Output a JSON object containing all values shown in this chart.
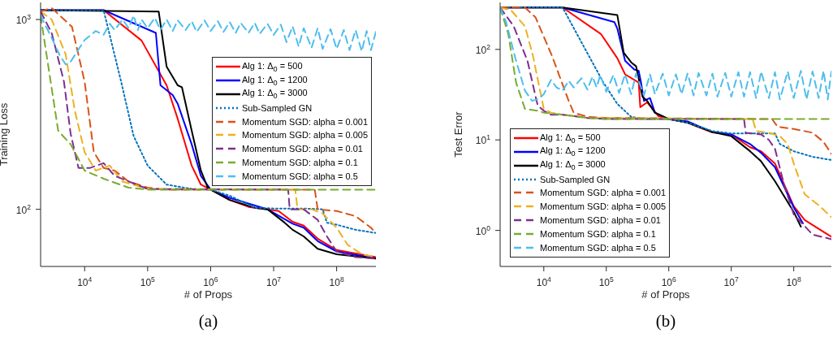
{
  "chart_data": [
    {
      "type": "line",
      "xlabel": "# of Props",
      "ylabel": "Training Loss",
      "log": "xy",
      "legend": "right",
      "annotations": [
        "(a)"
      ],
      "xlim": [
        2000,
        420000000
      ],
      "ylim": [
        50,
        1230
      ],
      "xticks": [
        {
          "value": 10000,
          "label": "10$^{4}$"
        },
        {
          "value": 100000,
          "label": "10$^{5}$"
        },
        {
          "value": 1000000,
          "label": "10$^{6}$"
        },
        {
          "value": 10000000,
          "label": "10$^{7}$"
        },
        {
          "value": 100000000,
          "label": "10$^{8}$"
        }
      ],
      "yticks": [
        {
          "value": 100,
          "label": "10$^{2}$"
        },
        {
          "value": 1000,
          "label": "10$^{3}$"
        }
      ],
      "series": [
        {
          "name": "Alg 1: Δ$_{0}$ = 500",
          "color": "#ff0000",
          "line_style": "solid",
          "x": [
            2000,
            20000,
            80000,
            200000,
            300000,
            500000,
            700000,
            1000000,
            2000000,
            4000000,
            8000000,
            12000000,
            20000000,
            30000000,
            50000000,
            100000000,
            420000000
          ],
          "values": [
            1120,
            1120,
            775,
            450,
            300,
            170,
            135,
            127,
            112,
            103,
            100,
            98,
            86,
            82,
            70,
            61,
            56
          ]
        },
        {
          "name": "Alg 1: Δ$_{0}$ = 1200",
          "color": "#0000ff",
          "line_style": "solid",
          "x": [
            2000,
            20000,
            135000,
            160000,
            250000,
            300000,
            500000,
            700000,
            1000000,
            2000000,
            8000000,
            20000000,
            30000000,
            50000000,
            100000000,
            420000000
          ],
          "values": [
            1120,
            1120,
            850,
            450,
            400,
            360,
            220,
            150,
            127,
            115,
            100,
            84,
            80,
            68,
            60,
            55
          ]
        },
        {
          "name": "Alg 1: Δ$_{0}$ = 3000",
          "color": "#000000",
          "line_style": "solid",
          "x": [
            2000,
            150000,
            200000,
            300000,
            350000,
            500000,
            700000,
            900000,
            1000000,
            2000000,
            5000000,
            8000000,
            15000000,
            20000000,
            30000000,
            50000000,
            100000000,
            420000000
          ],
          "values": [
            1120,
            1100,
            565,
            450,
            440,
            260,
            160,
            130,
            127,
            112,
            102,
            100,
            85,
            78,
            72,
            62,
            58,
            55
          ]
        },
        {
          "name": "Sub-Sampled GN",
          "color": "#0072bd",
          "line_style": "dotted",
          "x": [
            2000,
            20000,
            38000,
            60000,
            100000,
            200000,
            500000,
            1000000,
            2000000,
            5000000,
            10000000,
            30000000,
            60000000,
            70000000,
            100000000,
            200000000,
            420000000
          ],
          "values": [
            1120,
            1120,
            470,
            243,
            170,
            135,
            128,
            127,
            118,
            102,
            101,
            101,
            100,
            85,
            83,
            78,
            75
          ]
        },
        {
          "name": "Momentum SGD: alpha = 0.001",
          "color": "#d95319",
          "line_style": "dashed",
          "x": [
            2000,
            3000,
            6300,
            10000,
            14000,
            20000,
            30000,
            50000,
            100000,
            200000,
            45000000,
            50000000,
            100000000,
            200000000,
            350000000,
            420000000
          ],
          "values": [
            1100,
            1150,
            915,
            470,
            200,
            165,
            160,
            140,
            130,
            127,
            127,
            100,
            98,
            92,
            80,
            75
          ]
        },
        {
          "name": "Momentum SGD: alpha = 0.005",
          "color": "#edb120",
          "line_style": "dashed",
          "x": [
            2000,
            3000,
            5000,
            7000,
            10000,
            15000,
            25000,
            40000,
            100000,
            22000000,
            24000000,
            40000000,
            60000000,
            100000000,
            150000000,
            250000000,
            420000000
          ],
          "values": [
            1100,
            1000,
            655,
            330,
            200,
            160,
            170,
            140,
            128,
            127,
            100,
            100,
            95,
            80,
            65,
            58,
            56
          ]
        },
        {
          "name": "Momentum SGD: alpha = 0.01",
          "color": "#7e2f8e",
          "line_style": "dashed",
          "x": [
            2000,
            3000,
            4700,
            6000,
            8000,
            12000,
            20000,
            30000,
            100000,
            17000000,
            18000000,
            30000000,
            50000000,
            70000000,
            100000000,
            200000000,
            420000000
          ],
          "values": [
            1100,
            850,
            470,
            250,
            165,
            165,
            175,
            150,
            128,
            127,
            100,
            100,
            88,
            72,
            60,
            56,
            55
          ]
        },
        {
          "name": "Momentum SGD: alpha = 0.1",
          "color": "#77ac30",
          "line_style": "dashed",
          "x": [
            2000,
            2100,
            3800,
            4200,
            6000,
            10000,
            20000,
            50000,
            100000,
            420000000
          ],
          "values": [
            1050,
            940,
            260,
            250,
            220,
            160,
            145,
            130,
            127,
            127
          ]
        },
        {
          "name": "Momentum SGD: alpha = 0.5",
          "color": "#4dbeee",
          "line_style": "dashed",
          "x": [
            2000,
            3000,
            4000,
            5000,
            6000,
            7000,
            10000,
            15000,
            20000,
            25000,
            30000,
            40000,
            50000,
            60000,
            70000,
            80000,
            100000,
            130000,
            160000,
            200000,
            250000,
            300000,
            400000,
            500000,
            600000,
            800000,
            1000000,
            1300000,
            1600000,
            2000000,
            2500000,
            3000000,
            4000000,
            5000000,
            6000000,
            8000000,
            10000000,
            13000000,
            16000000,
            20000000,
            25000000,
            30000000,
            40000000,
            50000000,
            60000000,
            80000000,
            100000000,
            130000000,
            160000000,
            200000000,
            250000000,
            300000000,
            350000000,
            420000000
          ],
          "values": [
            1050,
            800,
            650,
            580,
            600,
            650,
            780,
            870,
            830,
            950,
            880,
            1000,
            900,
            1050,
            880,
            1000,
            900,
            1020,
            880,
            1000,
            870,
            990,
            880,
            980,
            860,
            990,
            870,
            980,
            860,
            970,
            850,
            960,
            850,
            960,
            840,
            950,
            830,
            940,
            760,
            920,
            720,
            900,
            710,
            900,
            700,
            890,
            700,
            880,
            690,
            880,
            680,
            870,
            690,
            860
          ]
        }
      ]
    },
    {
      "type": "line",
      "xlabel": "# of Props",
      "ylabel": "Test Error",
      "log": "xy",
      "legend": "bottom left",
      "annotations": [
        "(b)"
      ],
      "xlim": [
        2000,
        400000000
      ],
      "ylim": [
        0.4,
        330
      ],
      "xticks": [
        {
          "value": 10000,
          "label": "10$^{4}$"
        },
        {
          "value": 100000,
          "label": "10$^{5}$"
        },
        {
          "value": 1000000,
          "label": "10$^{6}$"
        },
        {
          "value": 10000000,
          "label": "10$^{7}$"
        },
        {
          "value": 100000000,
          "label": "10$^{8}$"
        }
      ],
      "yticks": [
        {
          "value": 1,
          "label": "10$^{0}$"
        },
        {
          "value": 10,
          "label": "10$^{1}$"
        },
        {
          "value": 100,
          "label": "10$^{2}$"
        }
      ],
      "series": [
        {
          "name": "Alg 1: Δ$_{0}$ = 500",
          "color": "#ff0000",
          "line_style": "solid",
          "x": [
            2000,
            20000,
            82000,
            150000,
            200000,
            330000,
            350000,
            450000,
            680000,
            1000000,
            2000000,
            5000000,
            10000000,
            20000000,
            30000000,
            50000000,
            100000000,
            150000000,
            400000000
          ],
          "values": [
            290,
            290,
            148,
            80,
            53,
            43,
            23,
            26,
            18.3,
            17,
            15.5,
            12.1,
            11.5,
            8.3,
            7.5,
            5.5,
            1.85,
            1.3,
            0.85
          ]
        },
        {
          "name": "Alg 1: Δ$_{0}$ = 1200",
          "color": "#0000ff",
          "line_style": "solid",
          "x": [
            2000,
            20000,
            135000,
            150000,
            200000,
            280000,
            330000,
            360000,
            400000,
            500000,
            600000,
            1000000,
            2000000,
            5000000,
            10000000,
            20000000,
            30000000,
            50000000,
            100000000,
            140000000
          ],
          "values": [
            290,
            290,
            200,
            170,
            75,
            60,
            58,
            43,
            27,
            29,
            20,
            17,
            16,
            12.2,
            11.5,
            9,
            7.2,
            5,
            1.8,
            1.2
          ]
        },
        {
          "name": "Alg 1: Δ$_{0}$ = 3000",
          "color": "#000000",
          "line_style": "solid",
          "x": [
            2000,
            20000,
            150000,
            190000,
            250000,
            300000,
            380000,
            450000,
            600000,
            1000000,
            2000000,
            5000000,
            10000000,
            20000000,
            30000000,
            50000000,
            100000000,
            130000000
          ],
          "values": [
            290,
            290,
            240,
            92,
            72,
            65,
            30,
            27,
            20,
            17,
            15.5,
            12.2,
            11,
            7.5,
            5.8,
            3.5,
            1.6,
            1.1
          ]
        },
        {
          "name": "Sub-Sampled GN",
          "color": "#0072bd",
          "line_style": "dotted",
          "x": [
            2000,
            20000,
            40000,
            90000,
            150000,
            250000,
            400000,
            1000000,
            2000000,
            5000000,
            10000000,
            50000000,
            60000000,
            100000000,
            200000000,
            400000000
          ],
          "values": [
            290,
            290,
            120,
            43,
            25,
            18,
            17,
            17,
            15.5,
            12.5,
            11.8,
            11.8,
            9,
            7.5,
            6.5,
            6
          ]
        },
        {
          "name": "Momentum SGD: alpha = 0.001",
          "color": "#d95319",
          "line_style": "dashed",
          "x": [
            2000,
            5000,
            7400,
            13500,
            25000,
            30000,
            50000,
            100000,
            45000000,
            55000000,
            100000000,
            200000000,
            300000000,
            400000000
          ],
          "values": [
            290,
            290,
            225,
            85,
            27,
            20,
            18,
            17.5,
            17,
            14,
            13.2,
            12,
            9.5,
            7
          ]
        },
        {
          "name": "Momentum SGD: alpha = 0.005",
          "color": "#edb120",
          "line_style": "dashed",
          "x": [
            2000,
            3000,
            5000,
            6700,
            10000,
            13000,
            20000,
            50000,
            22000000,
            25000000,
            40000000,
            60000000,
            80000000,
            100000000,
            150000000,
            250000000,
            400000000
          ],
          "values": [
            290,
            270,
            180,
            85,
            22,
            20,
            19,
            17.5,
            17,
            12.5,
            12,
            11,
            9,
            5.5,
            2.5,
            1.9,
            1.4
          ]
        },
        {
          "name": "Momentum SGD: alpha = 0.01",
          "color": "#7e2f8e",
          "line_style": "dashed",
          "x": [
            2000,
            3300,
            5500,
            7400,
            8000,
            10000,
            13000,
            20000,
            50000,
            100000,
            16000000,
            17000000,
            30000000,
            40000000,
            50000000,
            70000000,
            100000000,
            200000000,
            400000000
          ],
          "values": [
            290,
            180,
            74,
            30,
            24,
            21,
            19,
            19,
            17.5,
            17,
            17,
            12,
            11.5,
            10,
            8,
            3.2,
            1.5,
            0.9,
            0.8
          ]
        },
        {
          "name": "Momentum SGD: alpha = 0.1",
          "color": "#77ac30",
          "line_style": "dashed",
          "x": [
            2000,
            2700,
            3600,
            5000,
            8000,
            10000,
            20000,
            50000,
            100000,
            400000000
          ],
          "values": [
            290,
            148,
            43,
            22,
            21,
            20,
            19,
            17.5,
            17,
            17
          ]
        },
        {
          "name": "Momentum SGD: alpha = 0.5",
          "color": "#4dbeee",
          "line_style": "dashed",
          "x": [
            2000,
            2500,
            3500,
            5000,
            6500,
            8000,
            10000,
            13000,
            16000,
            20000,
            25000,
            30000,
            40000,
            50000,
            60000,
            70000,
            80000,
            100000,
            130000,
            160000,
            200000,
            250000,
            300000,
            400000,
            500000,
            600000,
            800000,
            1000000,
            1300000,
            1600000,
            2000000,
            2500000,
            3000000,
            4000000,
            5000000,
            6000000,
            8000000,
            10000000,
            13000000,
            16000000,
            20000000,
            25000000,
            30000000,
            40000000,
            50000000,
            60000000,
            80000000,
            100000000,
            130000000,
            160000000,
            200000000,
            250000000,
            300000000,
            350000000,
            400000000
          ],
          "values": [
            290,
            200,
            80,
            35,
            27,
            28,
            32,
            46,
            38,
            35,
            45,
            38,
            48,
            36,
            50,
            38,
            52,
            34,
            52,
            33,
            53,
            32,
            54,
            31,
            53,
            32,
            54,
            31,
            53,
            32,
            54,
            31,
            55,
            31,
            54,
            30,
            55,
            30,
            56,
            30,
            56,
            29,
            57,
            29,
            56,
            28,
            57,
            29,
            58,
            28,
            57,
            29,
            58,
            28,
            57
          ]
        }
      ]
    }
  ]
}
